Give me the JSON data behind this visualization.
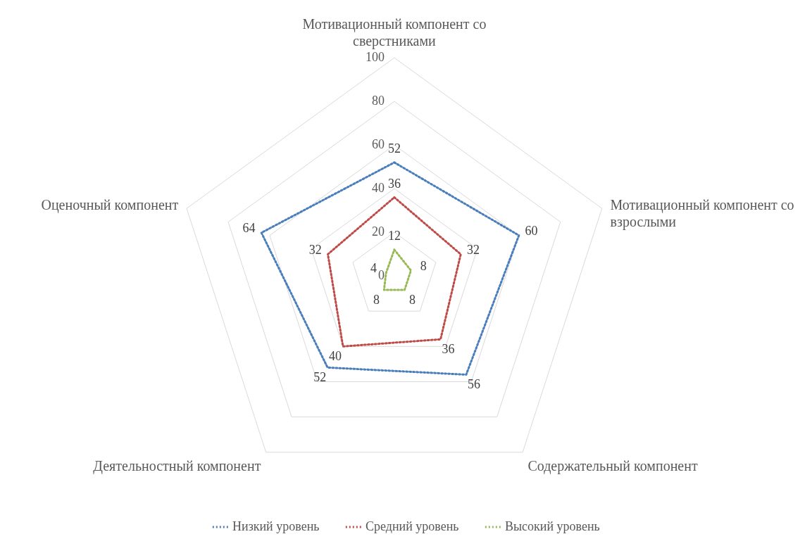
{
  "chart_data": {
    "type": "radar",
    "categories": [
      "Мотивационный компонент со сверстниками",
      "Мотивационный компонент со взрослыми",
      "Содержательный компонент",
      "Деятельностный компонент",
      "Оценочный компонент"
    ],
    "series": [
      {
        "name": "Низкий уровень",
        "color": "#4a7ebb",
        "values": [
          52,
          60,
          56,
          52,
          64
        ]
      },
      {
        "name": "Средний уровень",
        "color": "#be4b48",
        "values": [
          36,
          32,
          36,
          40,
          32
        ]
      },
      {
        "name": "Высокий уровень",
        "color": "#98b954",
        "values": [
          12,
          8,
          8,
          8,
          4
        ]
      }
    ],
    "ylim": [
      0,
      100
    ],
    "yticks": [
      0,
      20,
      40,
      60,
      80,
      100
    ],
    "grid": true,
    "legend": "bottom",
    "data_labels": true,
    "line_style": "dotted",
    "marker": "none"
  }
}
